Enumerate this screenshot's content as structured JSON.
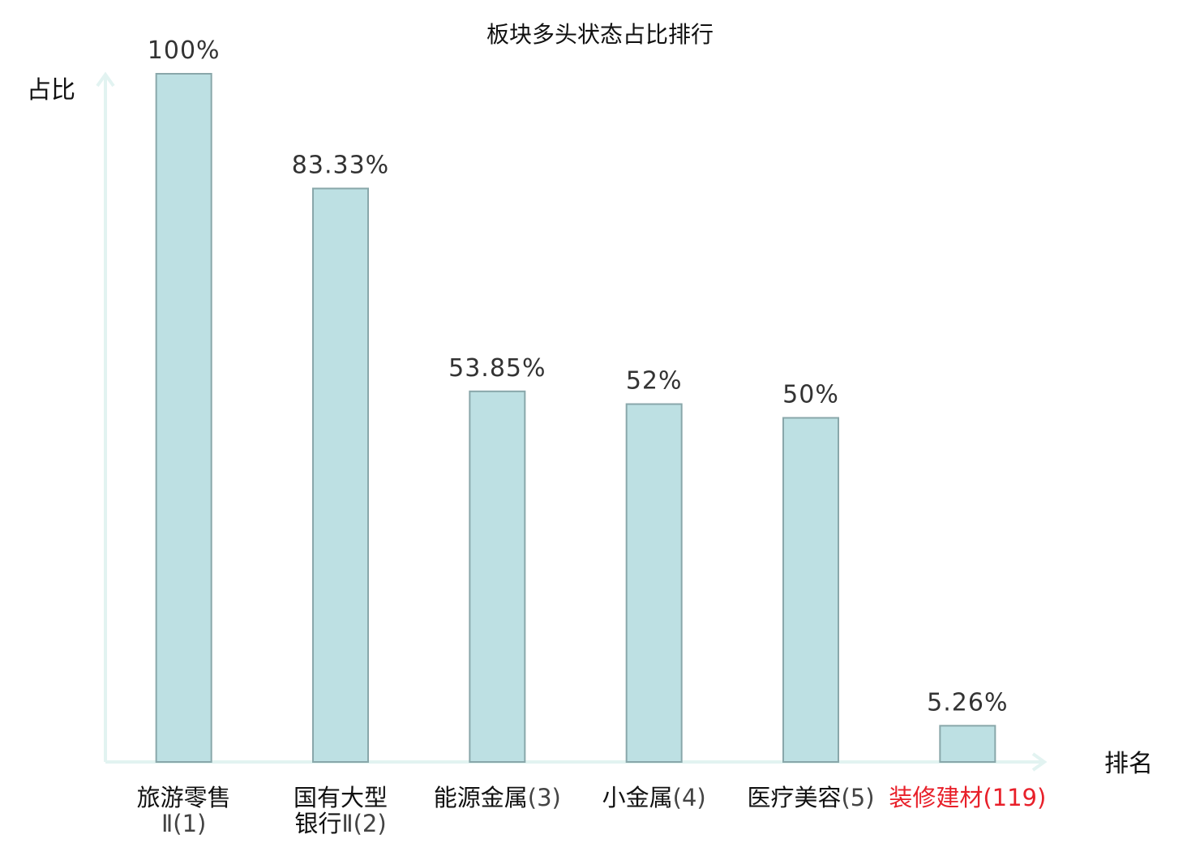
{
  "chart_data": {
    "type": "bar",
    "title": "板块多头状态占比排行",
    "ylabel": "占比",
    "xlabel": "排名",
    "ylim": [
      0,
      100
    ],
    "grid": false,
    "categories": [
      {
        "lines": [
          {
            "name": "旅游零售",
            "rank": ""
          },
          {
            "name": "",
            "rank": "Ⅱ(1)"
          }
        ],
        "highlight": false
      },
      {
        "lines": [
          {
            "name": "国有大型",
            "rank": ""
          },
          {
            "name": "银行",
            "rank": "Ⅱ(2)"
          }
        ],
        "highlight": false
      },
      {
        "lines": [
          {
            "name": "能源金属",
            "rank": "(3)"
          }
        ],
        "highlight": false
      },
      {
        "lines": [
          {
            "name": "小金属",
            "rank": "(4)"
          }
        ],
        "highlight": false
      },
      {
        "lines": [
          {
            "name": "医疗美容",
            "rank": "(5)"
          }
        ],
        "highlight": false
      },
      {
        "lines": [
          {
            "name": "装修建材",
            "rank": "(119)"
          }
        ],
        "highlight": true
      }
    ],
    "values": [
      100,
      83.33,
      53.85,
      52,
      50,
      5.26
    ],
    "value_labels": [
      "100%",
      "83.33%",
      "53.85%",
      "52%",
      "50%",
      "5.26%"
    ],
    "colors": {
      "bar_fill": "#bde0e3",
      "bar_stroke": "#89a7aa",
      "axis": "#e2f3f1",
      "highlight": "#e8202a"
    }
  }
}
